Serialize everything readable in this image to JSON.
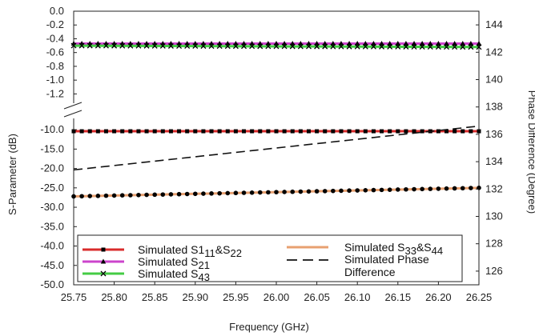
{
  "chart_data": {
    "type": "line",
    "xlabel": "Frequency (GHz)",
    "ylabel_left": "S-Parameter (dB)",
    "ylabel_right": "Phase Difference (Degree)",
    "x_ticks": [
      "25.75",
      "25.80",
      "25.85",
      "25.90",
      "25.95",
      "26.00",
      "26.05",
      "26.10",
      "26.15",
      "26.20",
      "26.25"
    ],
    "xlim": [
      25.75,
      26.25
    ],
    "left_axis_upper": {
      "ylim": [
        -1.3,
        0.0
      ],
      "ticks": [
        "0.0",
        "-0.2",
        "-0.4",
        "-0.6",
        "-0.8",
        "-1.0",
        "-1.2"
      ],
      "tick_values": [
        0.0,
        -0.2,
        -0.4,
        -0.6,
        -0.8,
        -1.0,
        -1.2
      ]
    },
    "left_axis_lower": {
      "ylim": [
        -50,
        -7.5
      ],
      "ticks": [
        "-10.0",
        "-15.0",
        "-20.0",
        "-25.0",
        "-30.0",
        "-35.0",
        "-40.0",
        "-45.0",
        "-50.0"
      ],
      "tick_values": [
        -10,
        -15,
        -20,
        -25,
        -30,
        -35,
        -40,
        -45,
        -50
      ]
    },
    "right_axis": {
      "ylim": [
        125,
        145
      ],
      "ticks": [
        "126",
        "128",
        "130",
        "132",
        "134",
        "136",
        "138",
        "140",
        "142",
        "144"
      ],
      "tick_values": [
        126,
        128,
        130,
        132,
        134,
        136,
        138,
        140,
        142,
        144
      ]
    },
    "series": [
      {
        "name": "Simulated S1₁₁&S₂₂",
        "axis": "left",
        "color": "#d92b2b",
        "marker": "square",
        "x": [
          25.75,
          26.25
        ],
        "y": [
          -10.4,
          -10.4
        ]
      },
      {
        "name": "Simulated S₂₁",
        "axis": "left",
        "color": "#cc44cc",
        "marker": "triangle",
        "x": [
          25.75,
          26.25
        ],
        "y": [
          -0.47,
          -0.47
        ]
      },
      {
        "name": "Simulated S₄₃",
        "axis": "left",
        "color": "#44cc44",
        "marker": "x",
        "x": [
          25.75,
          26.25
        ],
        "y": [
          -0.5,
          -0.52
        ]
      },
      {
        "name": "Simulated S₃₃&S₄₄",
        "axis": "left",
        "color": "#e8a070",
        "marker": "dot",
        "x": [
          25.75,
          26.25
        ],
        "y": [
          -27.2,
          -25.0
        ]
      },
      {
        "name": "Simulated Phase Difference",
        "axis": "right",
        "color": "#111111",
        "style": "dashed",
        "x": [
          25.75,
          26.25
        ],
        "y": [
          133.4,
          136.6
        ]
      }
    ],
    "legend": {
      "placement": "bottom-left",
      "col1": [
        {
          "prefix": "Simulated S1",
          "sub1": "11",
          "mid": "&S",
          "sub2": "22",
          "color": "#d92b2b",
          "marker": "square"
        },
        {
          "prefix": "Simulated S",
          "sub1": "21",
          "mid": "",
          "sub2": "",
          "color": "#cc44cc",
          "marker": "triangle"
        },
        {
          "prefix": "Simulated S",
          "sub1": "43",
          "mid": "",
          "sub2": "",
          "color": "#44cc44",
          "marker": "x"
        }
      ],
      "col2": [
        {
          "prefix": "Simulated S",
          "sub1": "33",
          "mid": "&S",
          "sub2": "44",
          "color": "#e8a070",
          "marker": "none"
        },
        {
          "line1": "Simulated Phase",
          "line2": "Difference",
          "color": "#111111",
          "style": "dashed"
        }
      ]
    }
  }
}
